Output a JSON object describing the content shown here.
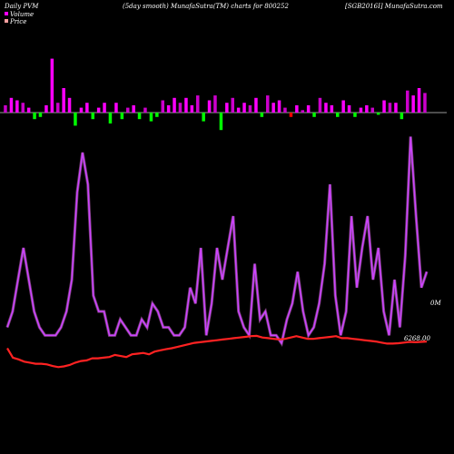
{
  "header": {
    "left": "Daily PVM",
    "mid": "(5day smooth) MunafaSutra(TM) charts for 800252",
    "right": "[SGB2016I] MunafaSutra.com"
  },
  "legend": [
    {
      "label": "Volume",
      "color": "#ff00ff"
    },
    {
      "label": "Price",
      "color": "#ffa0a0"
    }
  ],
  "colors": {
    "background": "#000000",
    "volume_up": "#ff00ff",
    "volume_up_alt": "#cc00cc",
    "volume_down": "#00ff00",
    "volume_neg_red": "#ff0000",
    "baseline": "#cccccc",
    "volume_line": "#cc44ff",
    "volume_line_glow": "#ff88ff",
    "price_line": "#ff2222"
  },
  "chart_data": [
    {
      "type": "bar",
      "title": "",
      "note": "volume bars above and below baseline (positive/negative)",
      "values": [
        3,
        6,
        5,
        4,
        2,
        -3,
        -2,
        3,
        22,
        4,
        10,
        6,
        -6,
        2,
        4,
        -3,
        2,
        4,
        -5,
        4,
        -3,
        2,
        3,
        -3,
        2,
        -4,
        -2,
        5,
        3,
        6,
        4,
        6,
        3,
        7,
        -4,
        5,
        7,
        -8,
        4,
        6,
        2,
        4,
        3,
        6,
        -2,
        7,
        4,
        5,
        2,
        -2,
        3,
        1,
        3,
        -2,
        6,
        4,
        3,
        -2,
        5,
        3,
        -2,
        2,
        3,
        2,
        -1,
        5,
        4,
        4,
        -3,
        9,
        7,
        10,
        8
      ],
      "colors_by_index_note": "magenta for up days, green/red for down days"
    },
    {
      "type": "line",
      "title": "",
      "series": [
        {
          "name": "Volume",
          "values": [
            10,
            20,
            40,
            60,
            40,
            20,
            10,
            5,
            5,
            5,
            10,
            20,
            40,
            95,
            120,
            100,
            30,
            20,
            20,
            5,
            5,
            15,
            10,
            5,
            5,
            15,
            10,
            25,
            20,
            10,
            10,
            5,
            5,
            10,
            35,
            25,
            60,
            5,
            25,
            60,
            40,
            60,
            80,
            20,
            10,
            5,
            50,
            15,
            20,
            5,
            5,
            0,
            15,
            25,
            45,
            20,
            5,
            10,
            25,
            50,
            100,
            30,
            5,
            20,
            80,
            35,
            60,
            80,
            40,
            60,
            20,
            5,
            40,
            10,
            55,
            130,
            80,
            35,
            45
          ]
        },
        {
          "name": "Price",
          "values": [
            6268,
            6240,
            6235,
            6228,
            6225,
            6222,
            6222,
            6220,
            6215,
            6212,
            6214,
            6218,
            6225,
            6230,
            6232,
            6238,
            6238,
            6240,
            6242,
            6248,
            6245,
            6242,
            6250,
            6252,
            6254,
            6250,
            6258,
            6262,
            6265,
            6268,
            6272,
            6276,
            6280,
            6284,
            6286,
            6288,
            6290,
            6292,
            6294,
            6296,
            6298,
            6300,
            6302,
            6304,
            6305,
            6300,
            6298,
            6296,
            6294,
            6296,
            6300,
            6304,
            6300,
            6296,
            6296,
            6298,
            6300,
            6302,
            6304,
            6298,
            6298,
            6296,
            6294,
            6292,
            6290,
            6288,
            6285,
            6282,
            6282,
            6283,
            6285,
            6287,
            6286,
            6287,
            6288
          ]
        }
      ],
      "annotations": [
        {
          "label": "0M"
        },
        {
          "label": "6268.00"
        }
      ]
    }
  ]
}
